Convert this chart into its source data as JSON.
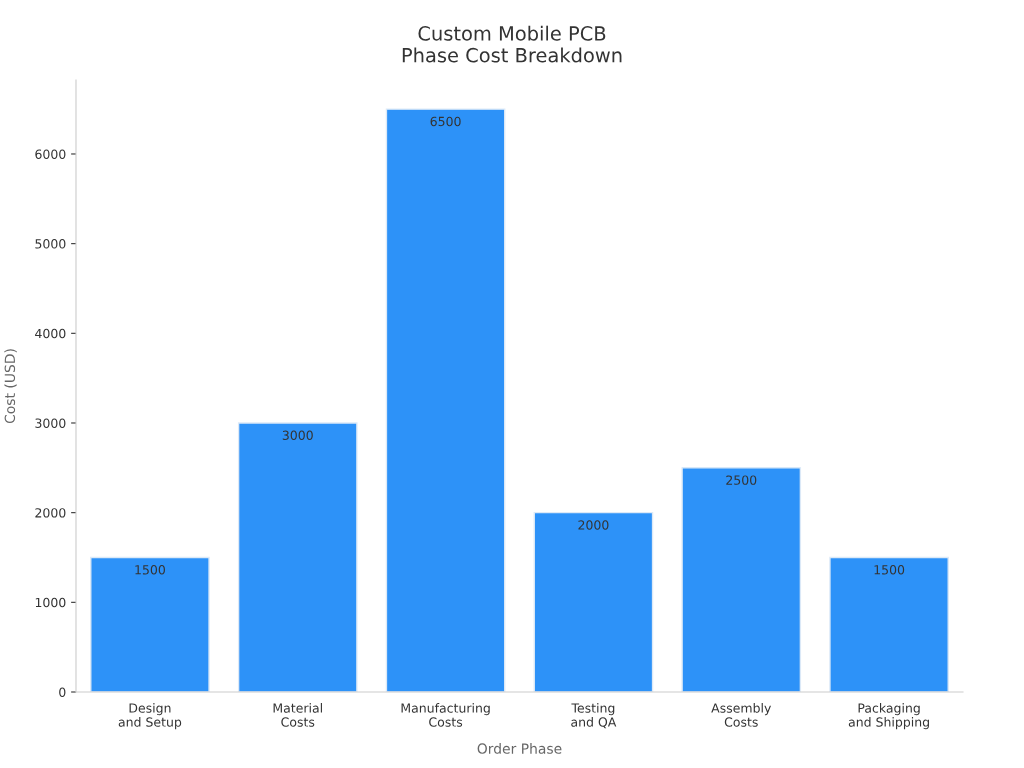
{
  "chart_data": {
    "type": "bar",
    "title": "Custom Mobile PCB\nPhase Cost Breakdown",
    "xlabel": "Order Phase",
    "ylabel": "Cost (USD)",
    "categories": [
      "Design\nand Setup",
      "Material\nCosts",
      "Manufacturing\nCosts",
      "Testing\nand QA",
      "Assembly\nCosts",
      "Packaging\nand Shipping"
    ],
    "values": [
      1500,
      3000,
      6500,
      2000,
      2500,
      1500
    ],
    "color": "#2d92f8",
    "ylim": [
      0,
      6825
    ],
    "yticks": [
      0,
      1000,
      2000,
      3000,
      4000,
      5000,
      6000
    ],
    "grid": false,
    "data_labels": true
  }
}
